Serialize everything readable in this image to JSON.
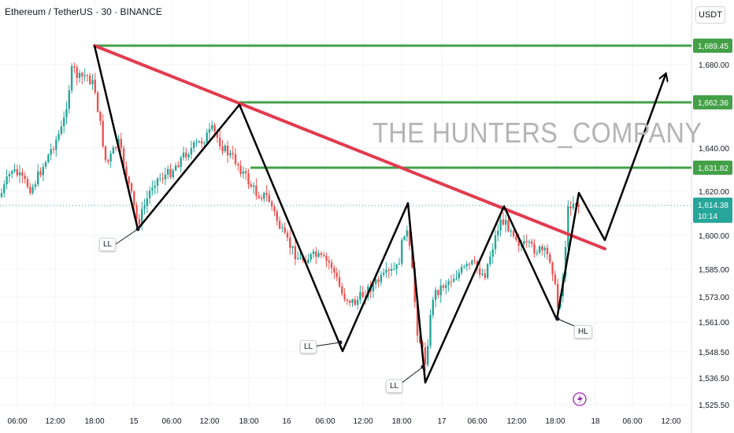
{
  "header": {
    "symbol": "Ethereum / TetherUS · 30 · BINANCE",
    "currency": "USDT"
  },
  "watermark": "THE HUNTERS_COMPANY",
  "colors": {
    "up": "#26a69a",
    "down": "#ef5350",
    "trendline": "#e23b4f",
    "level": "#43a047",
    "path": "#000000",
    "current": "#26a69a"
  },
  "annotations": [
    "LL",
    "LL",
    "LL",
    "HL"
  ],
  "icons": [
    "lightning-icon"
  ],
  "chart_data": {
    "type": "candlestick",
    "x_ticks": [
      "06:00",
      "12:00",
      "18:00",
      "15",
      "06:00",
      "12:00",
      "18:00",
      "16",
      "06:00",
      "12:00",
      "18:00",
      "17",
      "06:00",
      "12:00",
      "18:00",
      "18",
      "06:00",
      "12:00"
    ],
    "y_ticks": [
      "1,680.00",
      "1,640.00",
      "1,620.00",
      "1,600.00",
      "1,585.00",
      "1,573.00",
      "1,561.00",
      "1,548.50",
      "1,536.50",
      "1,525.50"
    ],
    "levels": [
      "1,689.45",
      "1,662.36",
      "1,631.82"
    ],
    "current_price": "1,614.38",
    "countdown": "10:14"
  }
}
